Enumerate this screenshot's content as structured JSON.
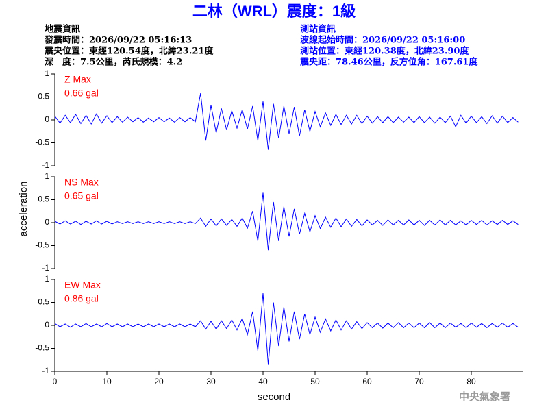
{
  "page": {
    "title": "二林（WRL）震度：1級",
    "left_info": [
      "地震資訊",
      "發震時間：2026/09/22 05:16:13",
      "震央位置：東經120.54度，北緯23.21度",
      "深　度：7.5公里，芮氏規模：4.2"
    ],
    "right_info": [
      "測站資訊",
      "波線起始時間：2026/09/22 05:16:00",
      "測站位置：東經120.38度，北緯23.90度",
      "震央距：78.46公里，反方位角：167.61度"
    ],
    "ylabel": "acceleration",
    "footer": "中央氣象署"
  },
  "chart_data": [
    {
      "type": "line",
      "annotation": [
        "Z Max",
        "0.66 gal"
      ],
      "color": "#0000ff",
      "xlim": [
        0,
        90
      ],
      "ylim": [
        -1,
        1
      ],
      "yticks": [
        1,
        0.5,
        0,
        -0.5,
        -1
      ],
      "x": [
        0,
        1,
        2,
        3,
        4,
        5,
        6,
        7,
        8,
        9,
        10,
        11,
        12,
        13,
        14,
        15,
        16,
        17,
        18,
        19,
        20,
        21,
        22,
        23,
        24,
        25,
        26,
        27,
        28,
        29,
        30,
        31,
        32,
        33,
        34,
        35,
        36,
        37,
        38,
        39,
        40,
        41,
        42,
        43,
        44,
        45,
        46,
        47,
        48,
        49,
        50,
        51,
        52,
        53,
        54,
        55,
        56,
        57,
        58,
        59,
        60,
        61,
        62,
        63,
        64,
        65,
        66,
        67,
        68,
        69,
        70,
        71,
        72,
        73,
        74,
        75,
        76,
        77,
        78,
        79,
        80,
        81,
        82,
        83,
        84,
        85,
        86,
        87,
        88,
        89
      ],
      "values": [
        0.08,
        -0.07,
        0.1,
        -0.06,
        0.12,
        -0.08,
        0.1,
        -0.09,
        0.13,
        -0.07,
        0.09,
        -0.06,
        0.07,
        -0.05,
        0.06,
        -0.04,
        0.05,
        -0.05,
        0.04,
        -0.04,
        0.05,
        -0.04,
        0.04,
        -0.05,
        0.05,
        -0.04,
        0.05,
        -0.04,
        0.58,
        -0.45,
        0.32,
        -0.28,
        0.25,
        -0.22,
        0.2,
        -0.18,
        0.22,
        -0.2,
        0.3,
        -0.45,
        0.4,
        -0.65,
        0.35,
        -0.4,
        0.3,
        -0.3,
        0.28,
        -0.35,
        0.22,
        -0.25,
        0.18,
        -0.15,
        0.15,
        -0.12,
        0.12,
        -0.1,
        0.1,
        -0.09,
        0.1,
        -0.08,
        0.08,
        -0.07,
        0.07,
        -0.06,
        0.07,
        -0.06,
        0.06,
        -0.05,
        0.06,
        -0.06,
        0.07,
        -0.06,
        0.06,
        -0.07,
        0.06,
        -0.06,
        0.08,
        -0.15,
        0.1,
        -0.07,
        0.08,
        -0.06,
        0.07,
        -0.08,
        0.09,
        -0.07,
        0.08,
        -0.06,
        0.05,
        -0.05
      ]
    },
    {
      "type": "line",
      "annotation": [
        "NS Max",
        "0.65 gal"
      ],
      "color": "#0000ff",
      "xlim": [
        0,
        90
      ],
      "ylim": [
        -1,
        1
      ],
      "yticks": [
        1,
        0.5,
        0,
        -0.5,
        -1
      ],
      "x": [
        0,
        1,
        2,
        3,
        4,
        5,
        6,
        7,
        8,
        9,
        10,
        11,
        12,
        13,
        14,
        15,
        16,
        17,
        18,
        19,
        20,
        21,
        22,
        23,
        24,
        25,
        26,
        27,
        28,
        29,
        30,
        31,
        32,
        33,
        34,
        35,
        36,
        37,
        38,
        39,
        40,
        41,
        42,
        43,
        44,
        45,
        46,
        47,
        48,
        49,
        50,
        51,
        52,
        53,
        54,
        55,
        56,
        57,
        58,
        59,
        60,
        61,
        62,
        63,
        64,
        65,
        66,
        67,
        68,
        69,
        70,
        71,
        72,
        73,
        74,
        75,
        76,
        77,
        78,
        79,
        80,
        81,
        82,
        83,
        84,
        85,
        86,
        87,
        88,
        89
      ],
      "values": [
        0.03,
        -0.03,
        0.04,
        -0.03,
        0.03,
        -0.04,
        0.03,
        -0.03,
        0.04,
        -0.03,
        0.03,
        -0.03,
        0.02,
        -0.02,
        0.02,
        -0.02,
        0.02,
        -0.02,
        0.02,
        -0.02,
        0.02,
        -0.02,
        0.02,
        -0.02,
        0.02,
        -0.02,
        0.02,
        -0.02,
        0.1,
        -0.08,
        0.08,
        -0.07,
        0.08,
        -0.06,
        0.07,
        -0.08,
        0.1,
        -0.12,
        0.25,
        -0.4,
        0.65,
        -0.6,
        0.45,
        -0.4,
        0.35,
        -0.3,
        0.3,
        -0.25,
        0.2,
        -0.2,
        0.15,
        -0.13,
        0.12,
        -0.1,
        0.1,
        -0.09,
        0.08,
        -0.08,
        0.07,
        -0.07,
        0.06,
        -0.05,
        0.05,
        -0.06,
        0.06,
        -0.05,
        0.05,
        -0.05,
        0.06,
        -0.05,
        0.05,
        -0.06,
        0.05,
        -0.05,
        0.06,
        -0.05,
        0.05,
        -0.05,
        0.04,
        -0.05,
        0.05,
        -0.04,
        0.05,
        -0.05,
        0.04,
        -0.04,
        0.05,
        -0.04,
        0.04,
        -0.04
      ]
    },
    {
      "type": "line",
      "annotation": [
        "EW Max",
        "0.86 gal"
      ],
      "color": "#0000ff",
      "xlim": [
        0,
        90
      ],
      "ylim": [
        -1,
        1
      ],
      "yticks": [
        1,
        0.5,
        0,
        -0.5,
        -1
      ],
      "xticks": [
        0,
        10,
        20,
        30,
        40,
        50,
        60,
        70,
        80
      ],
      "xlabel": "second",
      "x": [
        0,
        1,
        2,
        3,
        4,
        5,
        6,
        7,
        8,
        9,
        10,
        11,
        12,
        13,
        14,
        15,
        16,
        17,
        18,
        19,
        20,
        21,
        22,
        23,
        24,
        25,
        26,
        27,
        28,
        29,
        30,
        31,
        32,
        33,
        34,
        35,
        36,
        37,
        38,
        39,
        40,
        41,
        42,
        43,
        44,
        45,
        46,
        47,
        48,
        49,
        50,
        51,
        52,
        53,
        54,
        55,
        56,
        57,
        58,
        59,
        60,
        61,
        62,
        63,
        64,
        65,
        66,
        67,
        68,
        69,
        70,
        71,
        72,
        73,
        74,
        75,
        76,
        77,
        78,
        79,
        80,
        81,
        82,
        83,
        84,
        85,
        86,
        87,
        88,
        89
      ],
      "values": [
        0.04,
        -0.03,
        0.03,
        -0.04,
        0.03,
        -0.03,
        0.04,
        -0.03,
        0.03,
        -0.03,
        0.04,
        -0.03,
        0.03,
        -0.03,
        0.03,
        -0.03,
        0.03,
        -0.03,
        0.03,
        -0.03,
        0.03,
        -0.03,
        0.03,
        -0.03,
        0.03,
        -0.03,
        0.03,
        -0.03,
        0.1,
        -0.08,
        0.09,
        -0.08,
        0.1,
        -0.07,
        0.12,
        -0.1,
        0.15,
        -0.2,
        0.3,
        -0.55,
        0.7,
        -0.86,
        0.5,
        -0.45,
        0.4,
        -0.35,
        0.3,
        -0.3,
        0.25,
        -0.2,
        0.18,
        -0.15,
        0.14,
        -0.12,
        0.12,
        -0.1,
        0.1,
        -0.08,
        0.08,
        -0.07,
        0.06,
        -0.05,
        0.05,
        -0.06,
        0.05,
        -0.05,
        0.06,
        -0.05,
        0.05,
        -0.05,
        0.05,
        -0.05,
        0.06,
        -0.05,
        0.05,
        -0.05,
        0.05,
        -0.04,
        0.04,
        -0.05,
        0.05,
        -0.04,
        0.04,
        -0.05,
        0.04,
        -0.04,
        0.05,
        -0.04,
        0.04,
        -0.04
      ]
    }
  ]
}
